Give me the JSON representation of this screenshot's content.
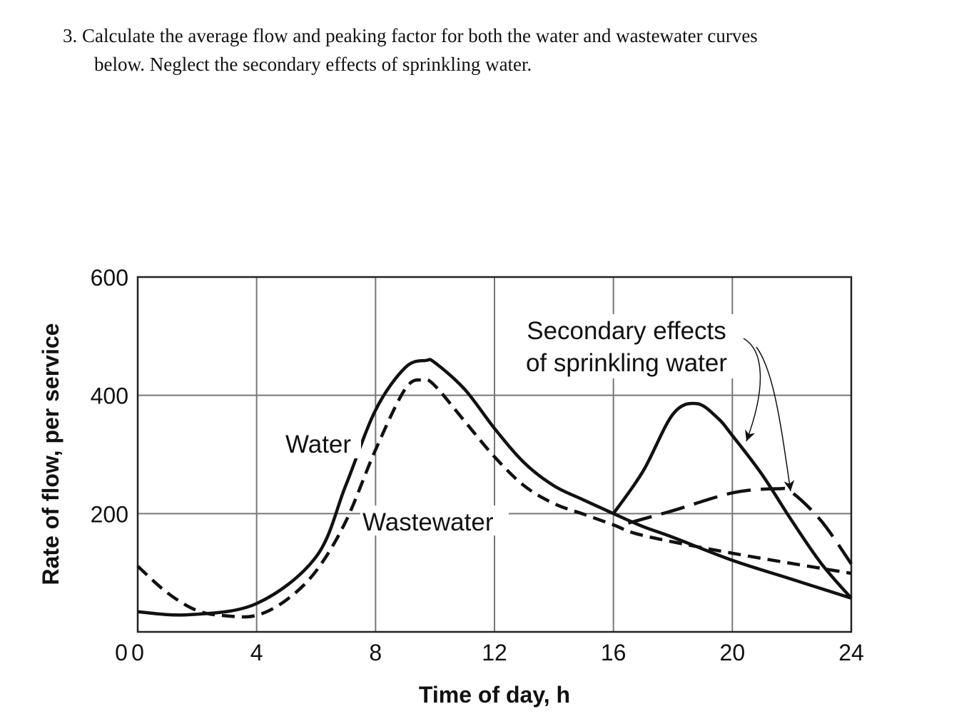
{
  "problem": {
    "line1": "3. Calculate the average flow and peaking factor for both the water and wastewater curves",
    "line2": "below. Neglect the secondary effects of sprinkling water."
  },
  "chart_data": {
    "type": "line",
    "title": "",
    "xlabel": "Time of day, h",
    "ylabel": "Rate of flow, per service",
    "xlim": [
      0,
      24
    ],
    "ylim": [
      0,
      600
    ],
    "xticks": [
      0,
      4,
      8,
      12,
      16,
      20,
      24
    ],
    "yticks": [
      200,
      400,
      600
    ],
    "grid": true,
    "annotations": {
      "water": "Water",
      "wastewater": "Wastewater",
      "secondary_line1": "Secondary effects",
      "secondary_line2": "of sprinkling water"
    },
    "series": [
      {
        "name": "Water",
        "style": "solid",
        "x": [
          0,
          1.7,
          4,
          6,
          7,
          8,
          9,
          9.7,
          10,
          11,
          12,
          13,
          14,
          15,
          16,
          17,
          18,
          20,
          22,
          24
        ],
        "y": [
          34,
          29,
          48,
          127,
          248,
          375,
          447,
          459,
          455,
          410,
          344,
          286,
          247,
          223,
          200,
          178,
          160,
          121,
          89,
          57
        ]
      },
      {
        "name": "Wastewater",
        "style": "dashed",
        "x": [
          0,
          1,
          2,
          3,
          4,
          5,
          6,
          7,
          8,
          9,
          9.6,
          10,
          11,
          12,
          13,
          14,
          15,
          16,
          17,
          20,
          24
        ],
        "y": [
          111,
          66,
          36,
          27,
          28,
          54,
          103,
          187,
          308,
          411,
          426,
          416,
          356,
          296,
          247,
          217,
          199,
          181,
          163,
          133,
          99
        ]
      },
      {
        "name": "Secondary effects of sprinkling water (water)",
        "style": "solid",
        "x": [
          16,
          17,
          18,
          18.8,
          19.5,
          20,
          21,
          22,
          23,
          24
        ],
        "y": [
          200,
          272,
          368,
          386,
          362,
          332,
          266,
          188,
          115,
          57
        ]
      },
      {
        "name": "Secondary effects of sprinkling water (wastewater)",
        "style": "long-dashed",
        "x": [
          16.5,
          18,
          20,
          21.5,
          22,
          23,
          24
        ],
        "y": [
          184,
          205,
          235,
          242,
          236,
          187,
          115
        ]
      }
    ]
  }
}
